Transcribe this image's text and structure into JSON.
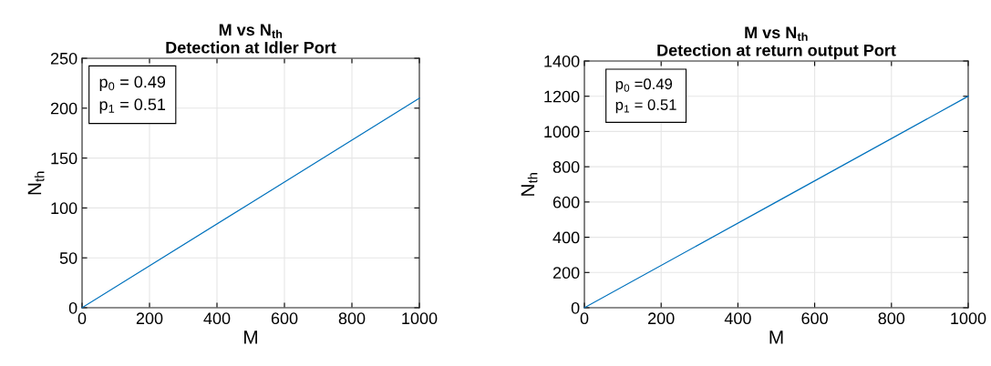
{
  "chart_data": [
    {
      "type": "line",
      "title": "M vs N$_{th}$\nDetection at Idler Port",
      "xlabel": "M",
      "ylabel": "N$_{th}$",
      "x": [
        0,
        500,
        1000
      ],
      "series": [
        {
          "color": "#0072bd",
          "values": [
            0,
            105,
            210
          ]
        }
      ],
      "xlim": [
        0,
        1000
      ],
      "xticks": [
        0,
        200,
        400,
        600,
        800,
        1000
      ],
      "ylim": [
        0,
        250
      ],
      "yticks": [
        0,
        50,
        100,
        150,
        200,
        250
      ],
      "grid": true,
      "annotations": [
        "p$_{0}$ = 0.49",
        "p$_{1}$ = 0.51"
      ]
    },
    {
      "type": "line",
      "title": "M vs N$_{th}$\nDetection at return output Port",
      "xlabel": "M",
      "ylabel": "N$_{th}$",
      "x": [
        0,
        500,
        1000
      ],
      "series": [
        {
          "color": "#0072bd",
          "values": [
            0,
            600,
            1200
          ]
        }
      ],
      "xlim": [
        0,
        1000
      ],
      "xticks": [
        0,
        200,
        400,
        600,
        800,
        1000
      ],
      "ylim": [
        0,
        1400
      ],
      "yticks": [
        0,
        200,
        400,
        600,
        800,
        1000,
        1200,
        1400
      ],
      "grid": true,
      "annotations": [
        "p$_{0}$ =0.49",
        "p$_{1}$ = 0.51"
      ]
    }
  ]
}
